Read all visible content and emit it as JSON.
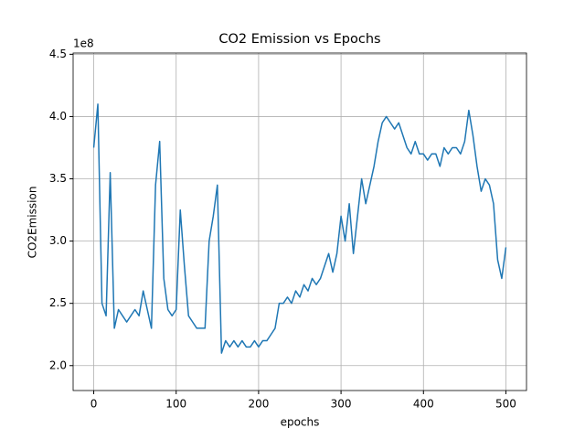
{
  "chart_data": {
    "type": "line",
    "title": "CO2 Emission vs Epochs",
    "x_label": "epochs",
    "y_label": "CO2Emission",
    "y_offset_label": "1e8",
    "x": [
      0,
      5,
      10,
      15,
      20,
      25,
      30,
      35,
      40,
      45,
      50,
      55,
      60,
      65,
      70,
      75,
      80,
      85,
      90,
      95,
      100,
      105,
      110,
      115,
      120,
      125,
      130,
      135,
      140,
      145,
      150,
      155,
      160,
      165,
      170,
      175,
      180,
      185,
      190,
      195,
      200,
      205,
      210,
      215,
      220,
      225,
      230,
      235,
      240,
      245,
      250,
      255,
      260,
      265,
      270,
      275,
      280,
      285,
      290,
      295,
      300,
      305,
      310,
      315,
      320,
      325,
      330,
      335,
      340,
      345,
      350,
      355,
      360,
      365,
      370,
      375,
      380,
      385,
      390,
      395,
      400,
      405,
      410,
      415,
      420,
      425,
      430,
      435,
      440,
      445,
      450,
      455,
      460,
      465,
      470,
      475,
      480,
      485,
      490,
      495,
      500
    ],
    "series": [
      {
        "name": "CO2Emission",
        "color": "#1f77b4",
        "values": [
          375000000.0,
          410000000.0,
          250000000.0,
          240000000.0,
          355000000.0,
          230000000.0,
          245000000.0,
          240000000.0,
          235000000.0,
          240000000.0,
          245000000.0,
          240000000.0,
          260000000.0,
          245000000.0,
          230000000.0,
          345000000.0,
          380000000.0,
          270000000.0,
          245000000.0,
          240000000.0,
          245000000.0,
          325000000.0,
          280000000.0,
          240000000.0,
          235000000.0,
          230000000.0,
          230000000.0,
          230000000.0,
          300000000.0,
          320000000.0,
          345000000.0,
          210000000.0,
          220000000.0,
          215000000.0,
          220000000.0,
          215000000.0,
          220000000.0,
          215000000.0,
          215000000.0,
          220000000.0,
          215000000.0,
          220000000.0,
          220000000.0,
          225000000.0,
          230000000.0,
          250000000.0,
          250000000.0,
          255000000.0,
          250000000.0,
          260000000.0,
          255000000.0,
          265000000.0,
          260000000.0,
          270000000.0,
          265000000.0,
          270000000.0,
          280000000.0,
          290000000.0,
          275000000.0,
          290000000.0,
          320000000.0,
          300000000.0,
          330000000.0,
          290000000.0,
          320000000.0,
          350000000.0,
          330000000.0,
          345000000.0,
          360000000.0,
          380000000.0,
          395000000.0,
          400000000.0,
          395000000.0,
          390000000.0,
          395000000.0,
          385000000.0,
          375000000.0,
          370000000.0,
          380000000.0,
          370000000.0,
          370000000.0,
          365000000.0,
          370000000.0,
          370000000.0,
          360000000.0,
          375000000.0,
          370000000.0,
          375000000.0,
          375000000.0,
          370000000.0,
          380000000.0,
          405000000.0,
          385000000.0,
          360000000.0,
          340000000.0,
          350000000.0,
          345000000.0,
          330000000.0,
          285000000.0,
          270000000.0,
          295000000.0
        ]
      }
    ],
    "xlim": [
      -25,
      525
    ],
    "xticks": [
      0,
      100,
      200,
      300,
      400,
      500
    ],
    "ylim": [
      180000000.0,
      451000000.0
    ],
    "yticks": [
      {
        "value": 200000000.0,
        "label": "2.0"
      },
      {
        "value": 250000000.0,
        "label": "2.5"
      },
      {
        "value": 300000000.0,
        "label": "3.0"
      },
      {
        "value": 350000000.0,
        "label": "3.5"
      },
      {
        "value": 400000000.0,
        "label": "4.0"
      },
      {
        "value": 450000000.0,
        "label": "4.5"
      }
    ],
    "grid": true
  }
}
